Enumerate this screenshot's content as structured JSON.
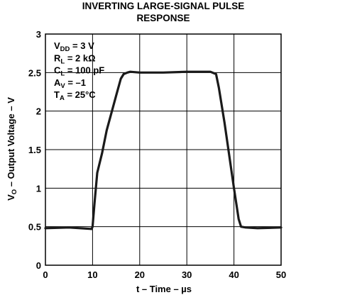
{
  "chart_data": {
    "type": "line",
    "title_line1": "INVERTING LARGE-SIGNAL PULSE",
    "title_line2": "RESPONSE",
    "xlabel": "t – Time – µs",
    "ylabel": "V",
    "ylabel_sub": "O",
    "ylabel_rest": " – Output Voltage – V",
    "xlim": [
      0,
      50
    ],
    "ylim": [
      0,
      3
    ],
    "x_ticks": [
      0,
      10,
      20,
      30,
      40,
      50
    ],
    "x_tick_labels": [
      "0",
      "10",
      "20",
      "30",
      "40",
      "50"
    ],
    "y_ticks": [
      0,
      0.5,
      1,
      1.5,
      2,
      2.5,
      3
    ],
    "y_tick_labels": [
      "0",
      "0.5",
      "1",
      "1.5",
      "2",
      "2.5",
      "3"
    ],
    "grid": true,
    "annotations": [
      {
        "main": "V",
        "sub": "DD",
        "rest": " = 3 V"
      },
      {
        "main": "R",
        "sub": "L",
        "rest": " = 2 kΩ"
      },
      {
        "main": "C",
        "sub": "L",
        "rest": " = 100 pF"
      },
      {
        "main": "A",
        "sub": "V",
        "rest": " = –1"
      },
      {
        "main": "T",
        "sub": "A",
        "rest": " = 25°C"
      }
    ],
    "series": [
      {
        "x": [
          0,
          5,
          9.8,
          10,
          10.4,
          11,
          12,
          13,
          15,
          16,
          16.6,
          17.4,
          18,
          20,
          25,
          30,
          35,
          36.2,
          36.8,
          38,
          40,
          41,
          41.5,
          42.5,
          45,
          50
        ],
        "y": [
          0.48,
          0.49,
          0.47,
          0.5,
          0.8,
          1.2,
          1.45,
          1.75,
          2.2,
          2.42,
          2.48,
          2.5,
          2.51,
          2.5,
          2.5,
          2.51,
          2.51,
          2.48,
          2.3,
          1.85,
          1.0,
          0.6,
          0.5,
          0.49,
          0.48,
          0.49
        ]
      }
    ],
    "colors": {
      "line": "#1a1a1a",
      "grid": "#000000",
      "frame": "#000000"
    }
  }
}
